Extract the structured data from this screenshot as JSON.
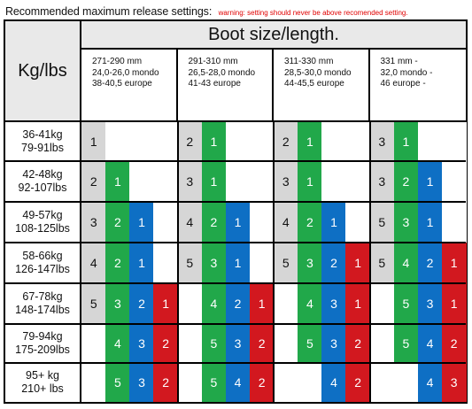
{
  "heading": {
    "title": "Recommended maximum release settings:",
    "warning": "warning: setting should never be above recomended setting."
  },
  "table": {
    "kg_header": "Kg/lbs",
    "boot_header": "Boot size/length.",
    "columns": [
      {
        "lines": [
          "271-290 mm",
          "24,0-26,0 mondo",
          "38-40,5 europe"
        ]
      },
      {
        "lines": [
          "291-310 mm",
          "26,5-28,0 mondo",
          "41-43 europe"
        ]
      },
      {
        "lines": [
          "311-330 mm",
          "28,5-30,0 mondo",
          "44-45,5 europe"
        ]
      },
      {
        "lines": [
          "331 mm -",
          "32,0 mondo -",
          "46 europe -"
        ]
      }
    ],
    "rows": [
      {
        "kg": "36-41kg",
        "lbs": "79-91lbs",
        "cells": [
          [
            {
              "v": "1",
              "c": "grey"
            },
            {
              "v": "",
              "c": "blank"
            },
            {
              "v": "",
              "c": "blank"
            },
            {
              "v": "",
              "c": "blank"
            }
          ],
          [
            {
              "v": "2",
              "c": "grey"
            },
            {
              "v": "1",
              "c": "green"
            },
            {
              "v": "",
              "c": "blank"
            },
            {
              "v": "",
              "c": "blank"
            }
          ],
          [
            {
              "v": "2",
              "c": "grey"
            },
            {
              "v": "1",
              "c": "green"
            },
            {
              "v": "",
              "c": "blank"
            },
            {
              "v": "",
              "c": "blank"
            }
          ],
          [
            {
              "v": "3",
              "c": "grey"
            },
            {
              "v": "1",
              "c": "green"
            },
            {
              "v": "",
              "c": "blank"
            },
            {
              "v": "",
              "c": "blank"
            }
          ]
        ]
      },
      {
        "kg": "42-48kg",
        "lbs": "92-107lbs",
        "cells": [
          [
            {
              "v": "2",
              "c": "grey"
            },
            {
              "v": "1",
              "c": "green"
            },
            {
              "v": "",
              "c": "blank"
            },
            {
              "v": "",
              "c": "blank"
            }
          ],
          [
            {
              "v": "3",
              "c": "grey"
            },
            {
              "v": "1",
              "c": "green"
            },
            {
              "v": "",
              "c": "blank"
            },
            {
              "v": "",
              "c": "blank"
            }
          ],
          [
            {
              "v": "3",
              "c": "grey"
            },
            {
              "v": "1",
              "c": "green"
            },
            {
              "v": "",
              "c": "blank"
            },
            {
              "v": "",
              "c": "blank"
            }
          ],
          [
            {
              "v": "3",
              "c": "grey"
            },
            {
              "v": "2",
              "c": "green"
            },
            {
              "v": "1",
              "c": "blue"
            },
            {
              "v": "",
              "c": "blank"
            }
          ]
        ]
      },
      {
        "kg": "49-57kg",
        "lbs": "108-125lbs",
        "cells": [
          [
            {
              "v": "3",
              "c": "grey"
            },
            {
              "v": "2",
              "c": "green"
            },
            {
              "v": "1",
              "c": "blue"
            },
            {
              "v": "",
              "c": "blank"
            }
          ],
          [
            {
              "v": "4",
              "c": "grey"
            },
            {
              "v": "2",
              "c": "green"
            },
            {
              "v": "1",
              "c": "blue"
            },
            {
              "v": "",
              "c": "blank"
            }
          ],
          [
            {
              "v": "4",
              "c": "grey"
            },
            {
              "v": "2",
              "c": "green"
            },
            {
              "v": "1",
              "c": "blue"
            },
            {
              "v": "",
              "c": "blank"
            }
          ],
          [
            {
              "v": "5",
              "c": "grey"
            },
            {
              "v": "3",
              "c": "green"
            },
            {
              "v": "1",
              "c": "blue"
            },
            {
              "v": "",
              "c": "blank"
            }
          ]
        ]
      },
      {
        "kg": "58-66kg",
        "lbs": "126-147lbs",
        "cells": [
          [
            {
              "v": "4",
              "c": "grey"
            },
            {
              "v": "2",
              "c": "green"
            },
            {
              "v": "1",
              "c": "blue"
            },
            {
              "v": "",
              "c": "blank"
            }
          ],
          [
            {
              "v": "5",
              "c": "grey"
            },
            {
              "v": "3",
              "c": "green"
            },
            {
              "v": "1",
              "c": "blue"
            },
            {
              "v": "",
              "c": "blank"
            }
          ],
          [
            {
              "v": "5",
              "c": "grey"
            },
            {
              "v": "3",
              "c": "green"
            },
            {
              "v": "2",
              "c": "blue"
            },
            {
              "v": "1",
              "c": "red"
            }
          ],
          [
            {
              "v": "5",
              "c": "grey"
            },
            {
              "v": "4",
              "c": "green"
            },
            {
              "v": "2",
              "c": "blue"
            },
            {
              "v": "1",
              "c": "red"
            }
          ]
        ]
      },
      {
        "kg": "67-78kg",
        "lbs": "148-174lbs",
        "cells": [
          [
            {
              "v": "5",
              "c": "grey"
            },
            {
              "v": "3",
              "c": "green"
            },
            {
              "v": "2",
              "c": "blue"
            },
            {
              "v": "1",
              "c": "red"
            }
          ],
          [
            {
              "v": "",
              "c": "blank"
            },
            {
              "v": "4",
              "c": "green"
            },
            {
              "v": "2",
              "c": "blue"
            },
            {
              "v": "1",
              "c": "red"
            }
          ],
          [
            {
              "v": "",
              "c": "blank"
            },
            {
              "v": "4",
              "c": "green"
            },
            {
              "v": "3",
              "c": "blue"
            },
            {
              "v": "1",
              "c": "red"
            }
          ],
          [
            {
              "v": "",
              "c": "blank"
            },
            {
              "v": "5",
              "c": "green"
            },
            {
              "v": "3",
              "c": "blue"
            },
            {
              "v": "1",
              "c": "red"
            }
          ]
        ]
      },
      {
        "kg": "79-94kg",
        "lbs": "175-209lbs",
        "cells": [
          [
            {
              "v": "",
              "c": "blank"
            },
            {
              "v": "4",
              "c": "green"
            },
            {
              "v": "3",
              "c": "blue"
            },
            {
              "v": "2",
              "c": "red"
            }
          ],
          [
            {
              "v": "",
              "c": "blank"
            },
            {
              "v": "5",
              "c": "green"
            },
            {
              "v": "3",
              "c": "blue"
            },
            {
              "v": "2",
              "c": "red"
            }
          ],
          [
            {
              "v": "",
              "c": "blank"
            },
            {
              "v": "5",
              "c": "green"
            },
            {
              "v": "3",
              "c": "blue"
            },
            {
              "v": "2",
              "c": "red"
            }
          ],
          [
            {
              "v": "",
              "c": "blank"
            },
            {
              "v": "5",
              "c": "green"
            },
            {
              "v": "4",
              "c": "blue"
            },
            {
              "v": "2",
              "c": "red"
            }
          ]
        ]
      },
      {
        "kg": "95+ kg",
        "lbs": "210+ lbs",
        "cells": [
          [
            {
              "v": "",
              "c": "blank"
            },
            {
              "v": "5",
              "c": "green"
            },
            {
              "v": "3",
              "c": "blue"
            },
            {
              "v": "2",
              "c": "red"
            }
          ],
          [
            {
              "v": "",
              "c": "blank"
            },
            {
              "v": "5",
              "c": "green"
            },
            {
              "v": "4",
              "c": "blue"
            },
            {
              "v": "2",
              "c": "red"
            }
          ],
          [
            {
              "v": "",
              "c": "blank"
            },
            {
              "v": "",
              "c": "blank"
            },
            {
              "v": "4",
              "c": "blue"
            },
            {
              "v": "2",
              "c": "red"
            }
          ],
          [
            {
              "v": "",
              "c": "blank"
            },
            {
              "v": "",
              "c": "blank"
            },
            {
              "v": "4",
              "c": "blue"
            },
            {
              "v": "3",
              "c": "red"
            }
          ]
        ]
      }
    ]
  },
  "colors": {
    "grey": "#d6d6d6",
    "green": "#21a84a",
    "blue": "#0e6fc4",
    "red": "#d2181f",
    "warning": "#e00000"
  }
}
